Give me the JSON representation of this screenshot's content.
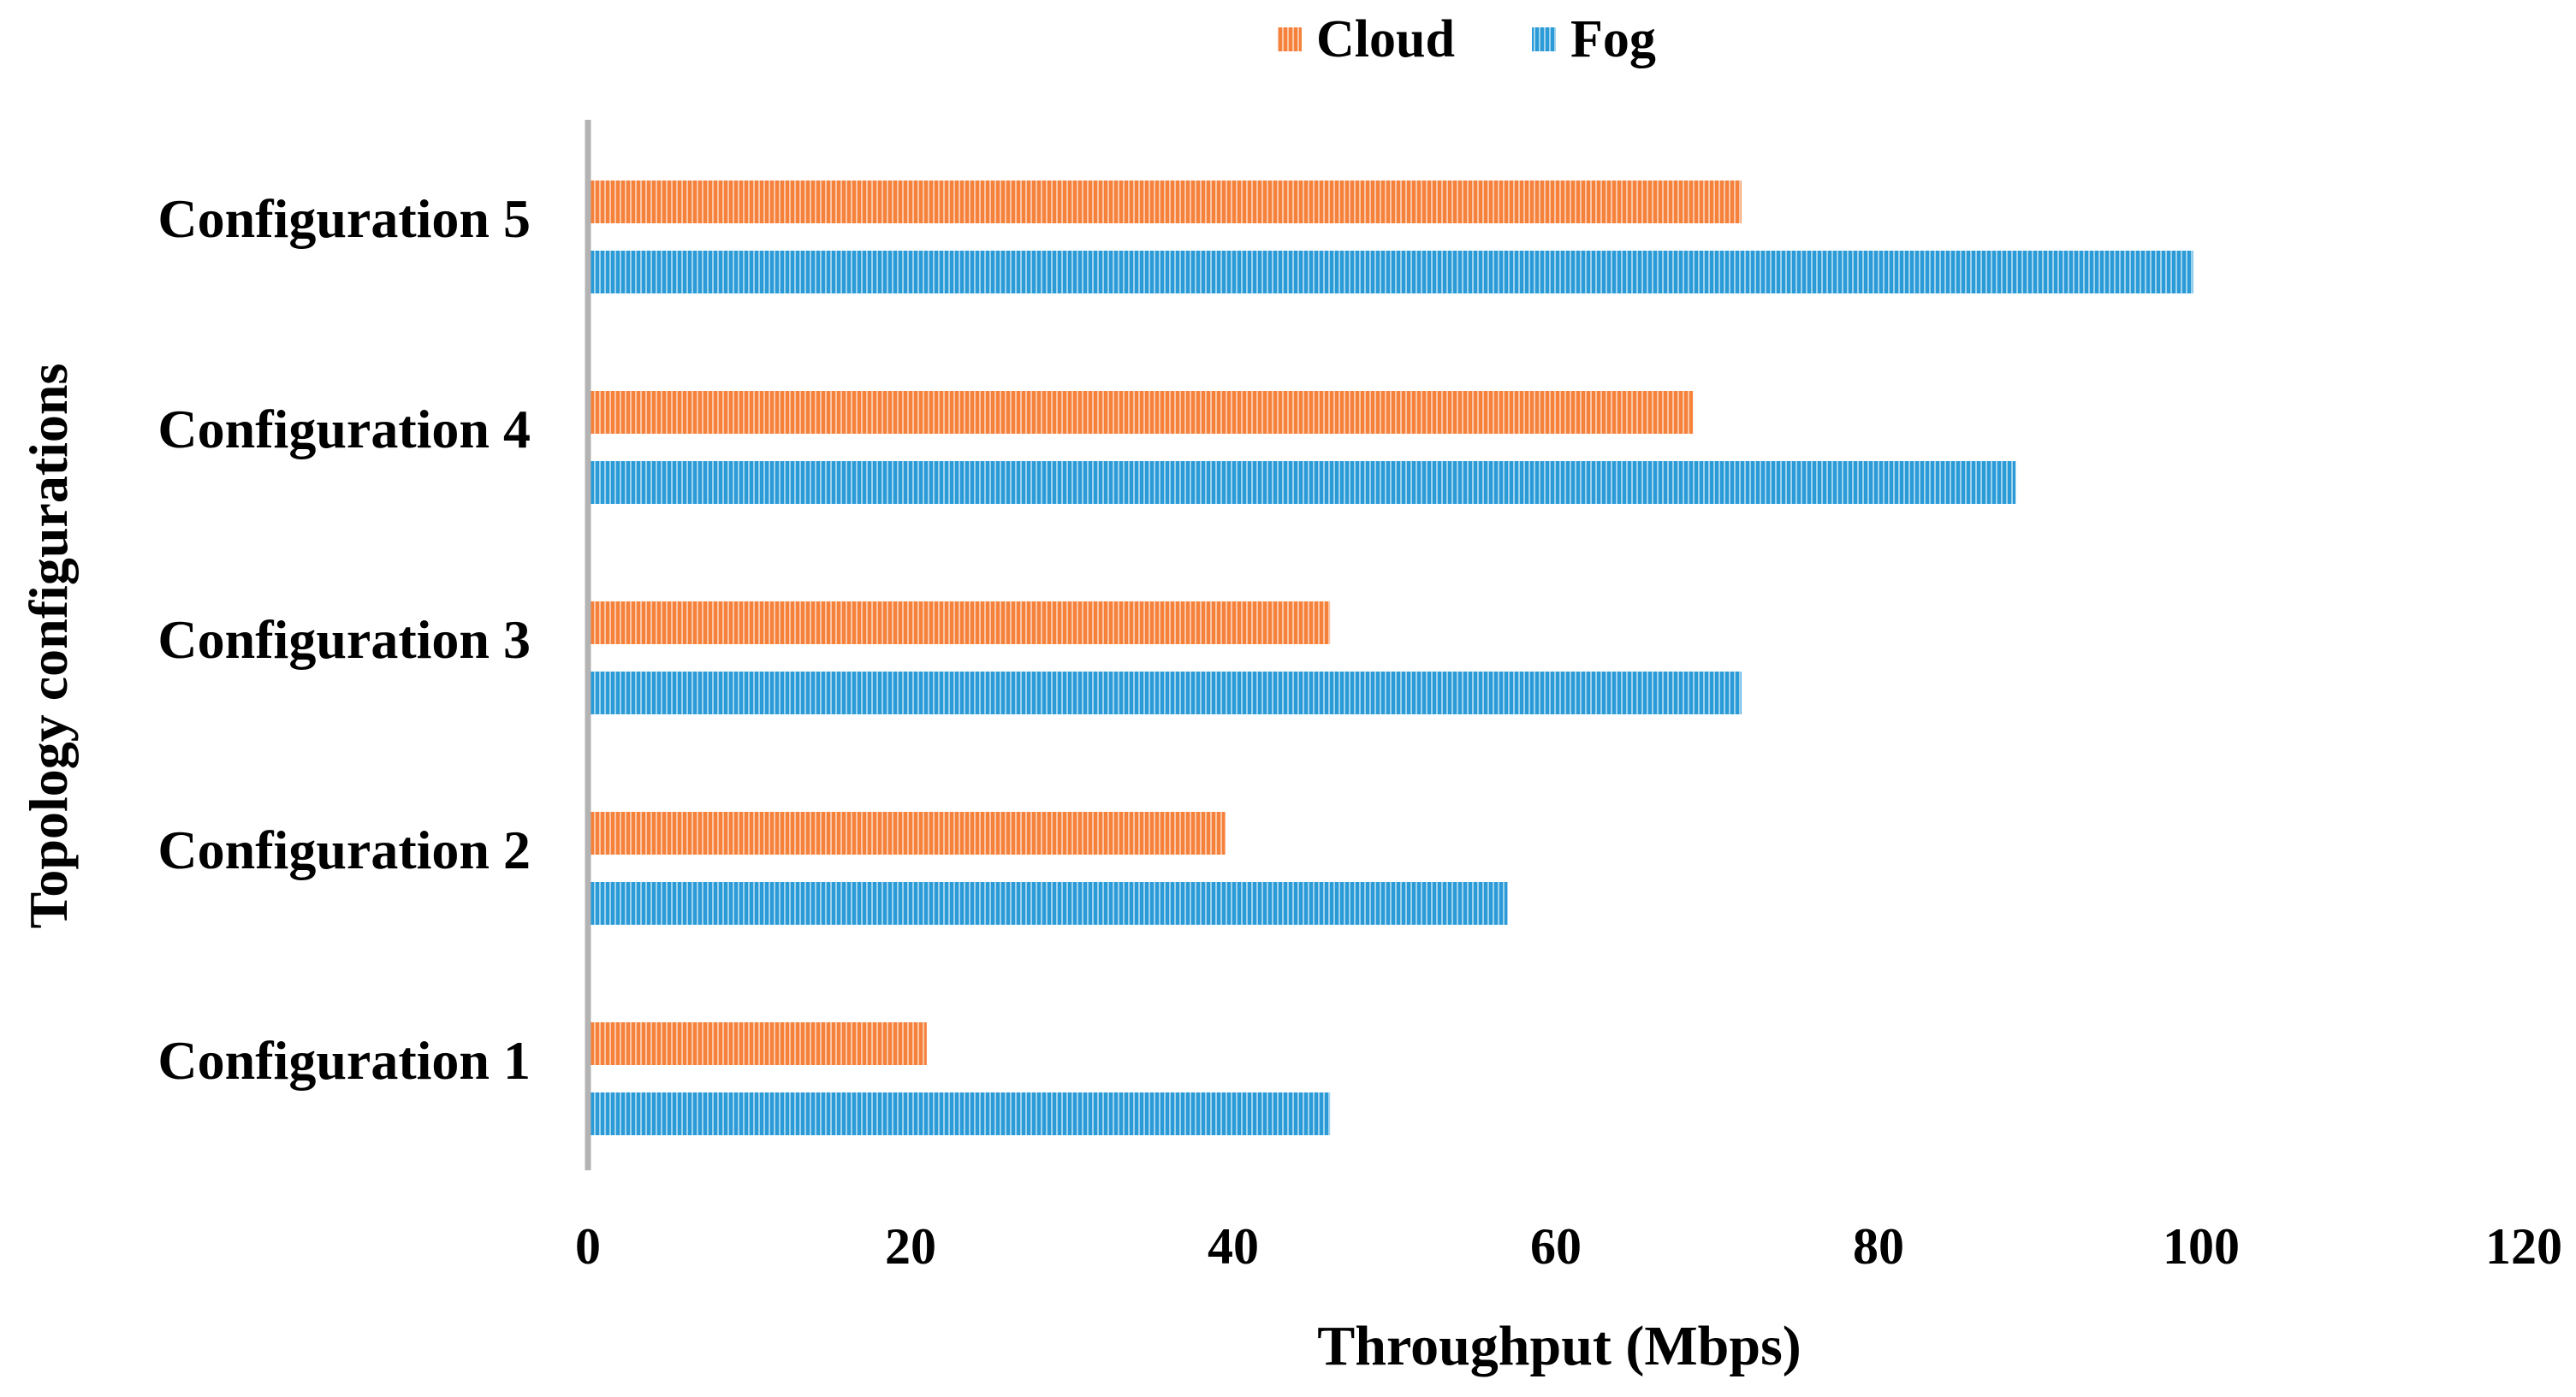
{
  "chart_data": {
    "type": "bar",
    "orientation": "horizontal",
    "title": "",
    "xlabel": "Throughput (Mbps)",
    "ylabel": "Topology configurations",
    "categories": [
      "Configuration 1",
      "Configuration 2",
      "Configuration 3",
      "Configuration 4",
      "Configuration 5"
    ],
    "series": [
      {
        "name": "Cloud",
        "color": "#F5813B",
        "values": [
          21,
          39.5,
          46,
          68.5,
          71.5
        ]
      },
      {
        "name": "Fog",
        "color": "#2B9BD8",
        "values": [
          46,
          57,
          71.5,
          88.5,
          99.5
        ]
      }
    ],
    "xlim": [
      0,
      120
    ],
    "xticks": [
      "0",
      "20",
      "40",
      "60",
      "80",
      "100",
      "120"
    ],
    "grid": false,
    "legend": "top-center",
    "fill_pattern": "vertical-stripes"
  }
}
